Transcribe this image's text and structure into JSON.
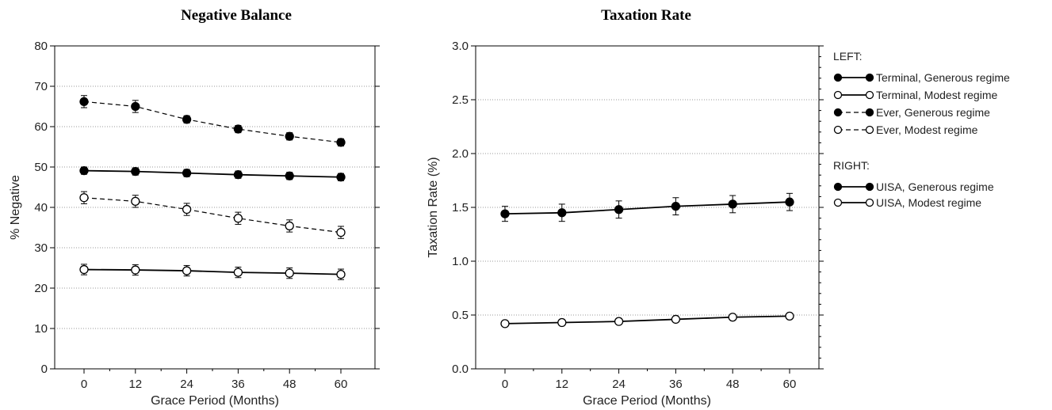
{
  "chart_data": [
    {
      "type": "line",
      "title": "Negative Balance",
      "xlabel": "Grace Period (Months)",
      "ylabel": "% Negative",
      "x": [
        0,
        12,
        24,
        36,
        48,
        60
      ],
      "xticks": [
        "0",
        "12",
        "24",
        "36",
        "48",
        "60"
      ],
      "ylim": [
        0,
        80
      ],
      "yticks": [
        "0",
        "10",
        "20",
        "30",
        "40",
        "50",
        "60",
        "70",
        "80"
      ],
      "grid": "horizontal dotted",
      "series": [
        {
          "name": "Terminal, Generous regime",
          "marker": "filled",
          "dash": "solid",
          "values": [
            49.1,
            48.9,
            48.5,
            48.1,
            47.8,
            47.5
          ],
          "err": [
            0.9,
            0.9,
            0.9,
            0.9,
            0.9,
            0.9
          ]
        },
        {
          "name": "Terminal, Modest regime",
          "marker": "open",
          "dash": "solid",
          "values": [
            24.6,
            24.5,
            24.3,
            23.9,
            23.7,
            23.4
          ],
          "err": [
            1.3,
            1.3,
            1.3,
            1.3,
            1.3,
            1.3
          ]
        },
        {
          "name": "Ever, Generous regime",
          "marker": "filled",
          "dash": "dashed",
          "values": [
            66.2,
            65.0,
            61.8,
            59.4,
            57.6,
            56.1
          ],
          "err": [
            1.5,
            1.5,
            0.9,
            0.9,
            0.9,
            0.9
          ]
        },
        {
          "name": "Ever, Modest regime",
          "marker": "open",
          "dash": "dashed",
          "values": [
            42.4,
            41.5,
            39.5,
            37.3,
            35.4,
            33.8
          ],
          "err": [
            1.5,
            1.5,
            1.5,
            1.5,
            1.5,
            1.5
          ]
        }
      ]
    },
    {
      "type": "line",
      "title": "Taxation Rate",
      "xlabel": "Grace Period (Months)",
      "ylabel": "Taxation Rate (%)",
      "x": [
        0,
        12,
        24,
        36,
        48,
        60
      ],
      "xticks": [
        "0",
        "12",
        "24",
        "36",
        "48",
        "60"
      ],
      "ylim": [
        0,
        3.0
      ],
      "yticks": [
        "0.0",
        "0.5",
        "1.0",
        "1.5",
        "2.0",
        "2.5",
        "3.0"
      ],
      "grid": "horizontal dotted",
      "series": [
        {
          "name": "UISA, Generous regime",
          "marker": "filled",
          "dash": "solid",
          "values": [
            1.44,
            1.45,
            1.48,
            1.51,
            1.53,
            1.55
          ],
          "err": [
            0.07,
            0.08,
            0.08,
            0.08,
            0.08,
            0.08
          ]
        },
        {
          "name": "UISA, Modest regime",
          "marker": "open",
          "dash": "solid",
          "values": [
            0.42,
            0.43,
            0.44,
            0.46,
            0.48,
            0.49
          ],
          "err": [
            0.02,
            0.02,
            0.02,
            0.02,
            0.02,
            0.02
          ]
        }
      ]
    }
  ],
  "legend": {
    "placement": "right",
    "groups": [
      {
        "heading": "LEFT:",
        "items": [
          {
            "label": "Terminal, Generous regime",
            "marker": "filled",
            "dash": "solid"
          },
          {
            "label": "Terminal, Modest regime",
            "marker": "open",
            "dash": "solid"
          },
          {
            "label": "Ever, Generous regime",
            "marker": "filled",
            "dash": "dashed"
          },
          {
            "label": "Ever, Modest regime",
            "marker": "open",
            "dash": "dashed"
          }
        ]
      },
      {
        "heading": "RIGHT:",
        "items": [
          {
            "label": "UISA, Generous regime",
            "marker": "filled",
            "dash": "solid"
          },
          {
            "label": "UISA, Modest regime",
            "marker": "open",
            "dash": "solid"
          }
        ]
      }
    ]
  }
}
